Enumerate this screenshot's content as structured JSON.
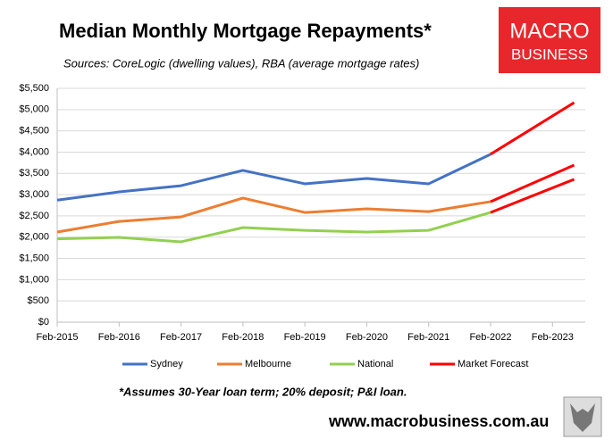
{
  "chart_data": {
    "type": "line",
    "title": "Median Monthly Mortgage Repayments*",
    "subtitle": "Sources: CoreLogic (dwelling values), RBA (average mortgage rates)",
    "note": "*Assumes 30-Year loan term; 20% deposit; P&I loan.",
    "website": "www.macrobusiness.com.au",
    "brand": [
      "MACRO",
      "BUSINESS"
    ],
    "x": [
      2015,
      2016,
      2017,
      2018,
      2019,
      2020,
      2021,
      2022,
      2023.35
    ],
    "xlim": [
      2015,
      2023.53
    ],
    "xticks": [
      {
        "value": 2015,
        "label": "Feb-2015"
      },
      {
        "value": 2016,
        "label": "Feb-2016"
      },
      {
        "value": 2017,
        "label": "Feb-2017"
      },
      {
        "value": 2018,
        "label": "Feb-2018"
      },
      {
        "value": 2019,
        "label": "Feb-2019"
      },
      {
        "value": 2020,
        "label": "Feb-2020"
      },
      {
        "value": 2021,
        "label": "Feb-2021"
      },
      {
        "value": 2022,
        "label": "Feb-2022"
      },
      {
        "value": 2023,
        "label": "Feb-2023"
      }
    ],
    "ylim": [
      0,
      5500
    ],
    "yticks": [
      {
        "value": 0,
        "label": "$0"
      },
      {
        "value": 500,
        "label": "$500"
      },
      {
        "value": 1000,
        "label": "$1,000"
      },
      {
        "value": 1500,
        "label": "$1,500"
      },
      {
        "value": 2000,
        "label": "$2,000"
      },
      {
        "value": 2500,
        "label": "$2,500"
      },
      {
        "value": 3000,
        "label": "$3,000"
      },
      {
        "value": 3500,
        "label": "$3,500"
      },
      {
        "value": 4000,
        "label": "$4,000"
      },
      {
        "value": 4500,
        "label": "$4,500"
      },
      {
        "value": 5000,
        "label": "$5,000"
      },
      {
        "value": 5500,
        "label": "$5,500"
      }
    ],
    "grid": true,
    "series": [
      {
        "name": "Sydney",
        "color": "#4472c4",
        "values": [
          2870,
          3065,
          3210,
          3570,
          3255,
          3380,
          3255,
          3950,
          5165
        ]
      },
      {
        "name": "Melbourne",
        "color": "#ed7d31",
        "values": [
          2120,
          2370,
          2475,
          2920,
          2580,
          2665,
          2600,
          2835,
          3695
        ]
      },
      {
        "name": "National",
        "color": "#92d050",
        "values": [
          1960,
          1995,
          1890,
          2225,
          2160,
          2120,
          2160,
          2580,
          3360
        ]
      }
    ],
    "forecast": {
      "name": "Market Forecast",
      "color": "#ff0000",
      "start_index": 7
    }
  }
}
